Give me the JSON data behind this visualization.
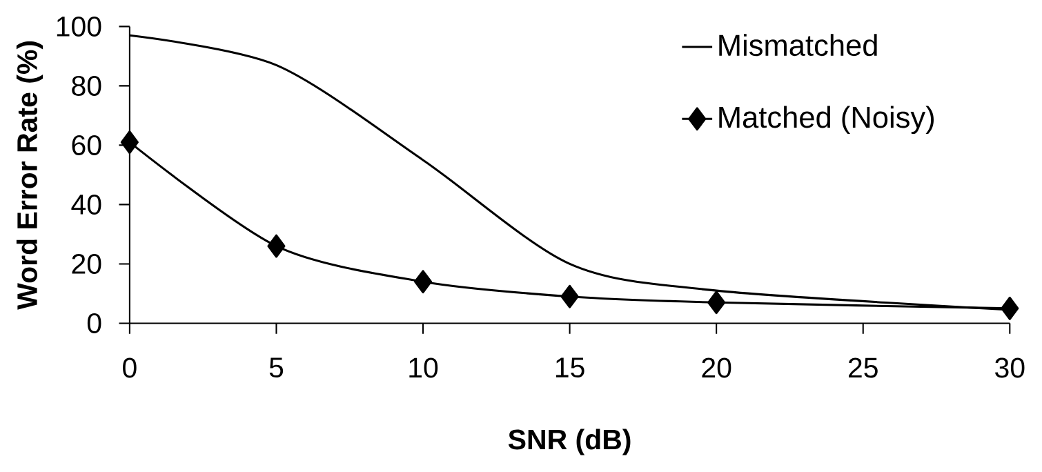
{
  "chart_data": {
    "type": "line",
    "xlabel": "SNR (dB)",
    "ylabel": "Word Error Rate (%)",
    "x": [
      0,
      5,
      10,
      15,
      20,
      30
    ],
    "series": [
      {
        "name": "Mismatched",
        "color": "#000000",
        "marker": "none",
        "values": [
          97,
          87,
          55,
          20,
          11,
          4.5
        ]
      },
      {
        "name": "Matched (Noisy)",
        "color": "#000000",
        "marker": "diamond",
        "values": [
          61,
          26,
          14,
          9,
          7,
          5
        ]
      }
    ],
    "xlim": [
      0,
      30
    ],
    "ylim": [
      0,
      100
    ],
    "xticks": [
      0,
      5,
      10,
      15,
      20,
      25,
      30
    ],
    "yticks": [
      0,
      20,
      40,
      60,
      80,
      100
    ],
    "grid": false,
    "legend": "top right",
    "line_style": "solid"
  }
}
